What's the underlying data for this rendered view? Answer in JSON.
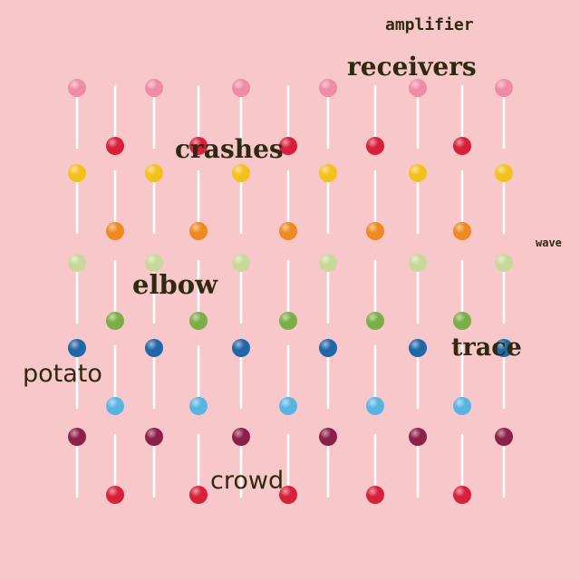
{
  "words": {
    "amplifier": "amplifier",
    "receivers": "receivers",
    "crashes": "crashes",
    "wave": "wave",
    "elbow": "elbow",
    "trace": "trace",
    "potato": "potato",
    "crowd": "crowd"
  },
  "background_color": "#f8c7c9",
  "lollipop_rows": [
    {
      "top_color": "#ee8ca6",
      "bottom_color": "#d8203a"
    },
    {
      "top_color": "#f3c21e",
      "bottom_color": "#ee8a1f"
    },
    {
      "top_color": "#c7d99a",
      "bottom_color": "#7bae46"
    },
    {
      "top_color": "#1f68a8",
      "bottom_color": "#5ab4e2"
    },
    {
      "top_color": "#8c2048",
      "bottom_color": "#d8203a"
    }
  ]
}
